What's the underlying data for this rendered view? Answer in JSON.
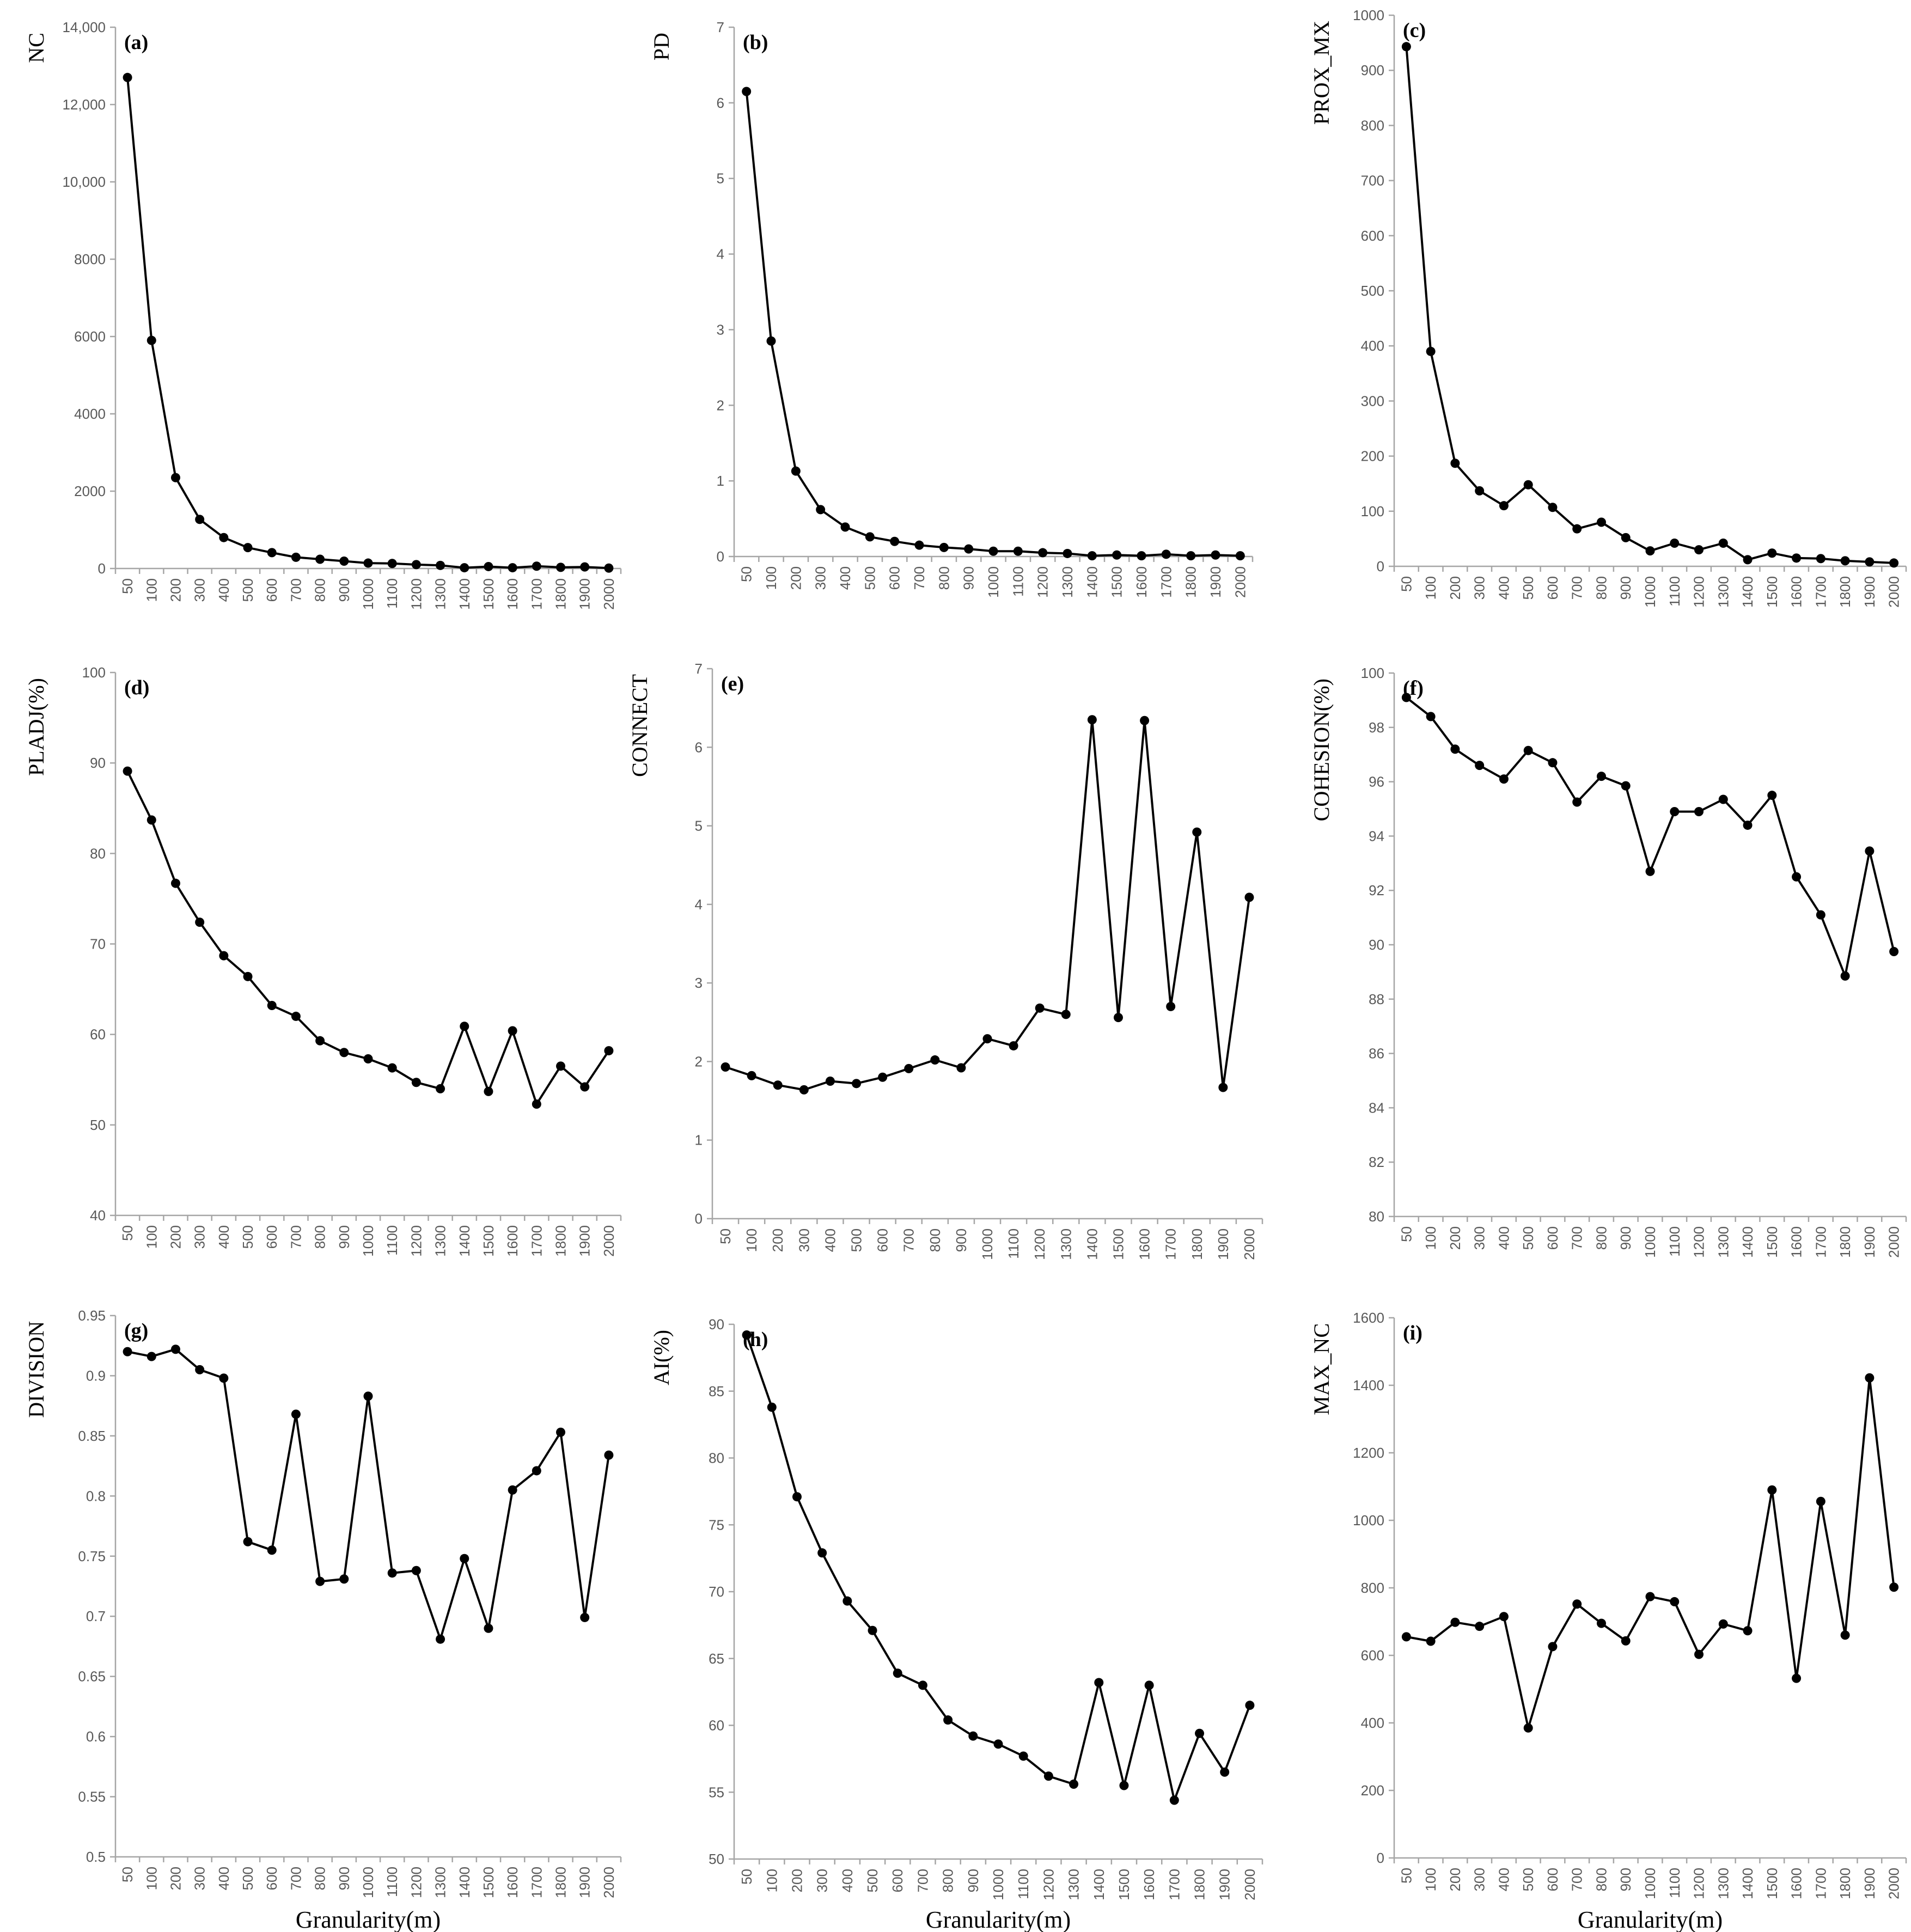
{
  "x_axis_title": "Granularity(m)",
  "chart_data": [
    {
      "type": "line",
      "panel_label": "(a)",
      "ylabel": "NC",
      "xlabel": "",
      "ylim": [
        0,
        14000
      ],
      "yticks": [
        "0",
        "2000",
        "4000",
        "6000",
        "8000",
        "10,000",
        "12,000",
        "14,000"
      ],
      "categories": [
        "50",
        "100",
        "200",
        "300",
        "400",
        "500",
        "600",
        "700",
        "800",
        "900",
        "1000",
        "1100",
        "1200",
        "1300",
        "1400",
        "1500",
        "1600",
        "1700",
        "1800",
        "1900",
        "2000"
      ],
      "values": [
        12700,
        5900,
        2350,
        1270,
        800,
        540,
        410,
        290,
        240,
        190,
        140,
        130,
        100,
        80,
        20,
        50,
        20,
        60,
        30,
        40,
        10
      ]
    },
    {
      "type": "line",
      "panel_label": "(b)",
      "ylabel": "PD",
      "xlabel": "",
      "ylim": [
        0,
        7
      ],
      "yticks": [
        "0",
        "1",
        "2",
        "3",
        "4",
        "5",
        "6",
        "7"
      ],
      "categories": [
        "50",
        "100",
        "200",
        "300",
        "400",
        "500",
        "600",
        "700",
        "800",
        "900",
        "1000",
        "1100",
        "1200",
        "1300",
        "1400",
        "1500",
        "1600",
        "1700",
        "1800",
        "1900",
        "2000"
      ],
      "values": [
        6.15,
        2.85,
        1.13,
        0.62,
        0.39,
        0.26,
        0.2,
        0.15,
        0.12,
        0.1,
        0.07,
        0.07,
        0.05,
        0.04,
        0.01,
        0.02,
        0.01,
        0.03,
        0.01,
        0.02,
        0.01
      ]
    },
    {
      "type": "line",
      "panel_label": "(c)",
      "ylabel": "PROX_MX",
      "xlabel": "",
      "ylim": [
        0,
        1000
      ],
      "yticks": [
        "0",
        "100",
        "200",
        "300",
        "400",
        "500",
        "600",
        "700",
        "800",
        "900",
        "1000"
      ],
      "categories": [
        "50",
        "100",
        "200",
        "300",
        "400",
        "500",
        "600",
        "700",
        "800",
        "900",
        "1000",
        "1100",
        "1200",
        "1300",
        "1400",
        "1500",
        "1600",
        "1700",
        "1800",
        "1900",
        "2000"
      ],
      "values": [
        943,
        390,
        187,
        137,
        110,
        148,
        107,
        68,
        80,
        52,
        28,
        42,
        30,
        42,
        12,
        24,
        15,
        14,
        10,
        8,
        6
      ]
    },
    {
      "type": "line",
      "panel_label": "(d)",
      "ylabel": "PLADJ(%)",
      "xlabel": "",
      "ylim": [
        40,
        100
      ],
      "yticks": [
        "40",
        "50",
        "60",
        "70",
        "80",
        "90",
        "100"
      ],
      "categories": [
        "50",
        "100",
        "200",
        "300",
        "400",
        "500",
        "600",
        "700",
        "800",
        "900",
        "1000",
        "1100",
        "1200",
        "1300",
        "1400",
        "1500",
        "1600",
        "1700",
        "1800",
        "1900",
        "2000"
      ],
      "values": [
        89.1,
        83.7,
        76.7,
        72.4,
        68.7,
        66.4,
        63.2,
        62.0,
        59.3,
        58.0,
        57.3,
        56.3,
        54.7,
        54.0,
        60.9,
        53.7,
        60.4,
        52.3,
        56.5,
        54.2,
        58.2
      ]
    },
    {
      "type": "line",
      "panel_label": "(e)",
      "ylabel": "CONNECT",
      "xlabel": "",
      "ylim": [
        0,
        7
      ],
      "yticks": [
        "0",
        "1",
        "2",
        "3",
        "4",
        "5",
        "6",
        "7"
      ],
      "categories": [
        "50",
        "100",
        "200",
        "300",
        "400",
        "500",
        "600",
        "700",
        "800",
        "900",
        "1000",
        "1100",
        "1200",
        "1300",
        "1400",
        "1500",
        "1600",
        "1700",
        "1800",
        "1900",
        "2000"
      ],
      "values": [
        1.93,
        1.82,
        1.7,
        1.64,
        1.75,
        1.72,
        1.8,
        1.91,
        2.02,
        1.92,
        2.29,
        2.2,
        2.68,
        2.6,
        6.35,
        2.56,
        6.34,
        2.7,
        4.92,
        1.67,
        4.09
      ]
    },
    {
      "type": "line",
      "panel_label": "(f)",
      "ylabel": "COHESION(%)",
      "xlabel": "",
      "ylim": [
        80,
        100
      ],
      "yticks": [
        "80",
        "82",
        "84",
        "86",
        "88",
        "90",
        "92",
        "94",
        "96",
        "98",
        "100"
      ],
      "categories": [
        "50",
        "100",
        "200",
        "300",
        "400",
        "500",
        "600",
        "700",
        "800",
        "900",
        "1000",
        "1100",
        "1200",
        "1300",
        "1400",
        "1500",
        "1600",
        "1700",
        "1800",
        "1900",
        "2000"
      ],
      "values": [
        99.1,
        98.4,
        97.2,
        96.6,
        96.1,
        97.15,
        96.7,
        95.25,
        96.2,
        95.85,
        92.7,
        94.9,
        94.9,
        95.35,
        94.4,
        95.5,
        92.5,
        91.1,
        88.85,
        93.45,
        89.75
      ]
    },
    {
      "type": "line",
      "panel_label": "(g)",
      "ylabel": "DIVISION",
      "xlabel": "Granularity(m)",
      "ylim": [
        0.5,
        0.95
      ],
      "yticks": [
        "0.5",
        "0.55",
        "0.6",
        "0.65",
        "0.7",
        "0.75",
        "0.8",
        "0.85",
        "0.9",
        "0.95"
      ],
      "categories": [
        "50",
        "100",
        "200",
        "300",
        "400",
        "500",
        "600",
        "700",
        "800",
        "900",
        "1000",
        "1100",
        "1200",
        "1300",
        "1400",
        "1500",
        "1600",
        "1700",
        "1800",
        "1900",
        "2000"
      ],
      "values": [
        0.92,
        0.916,
        0.922,
        0.905,
        0.898,
        0.762,
        0.755,
        0.868,
        0.729,
        0.731,
        0.883,
        0.736,
        0.738,
        0.681,
        0.748,
        0.69,
        0.805,
        0.821,
        0.853,
        0.699,
        0.834
      ]
    },
    {
      "type": "line",
      "panel_label": "(h)",
      "ylabel": "AI(%)",
      "xlabel": "Granularity(m)",
      "ylim": [
        50,
        90
      ],
      "yticks": [
        "50",
        "55",
        "60",
        "65",
        "70",
        "75",
        "80",
        "85",
        "90"
      ],
      "categories": [
        "50",
        "100",
        "200",
        "300",
        "400",
        "500",
        "600",
        "700",
        "800",
        "900",
        "1000",
        "1100",
        "1200",
        "1300",
        "1400",
        "1500",
        "1600",
        "1700",
        "1800",
        "1900",
        "2000"
      ],
      "values": [
        89.2,
        83.8,
        77.1,
        72.9,
        69.3,
        67.1,
        63.9,
        63.0,
        60.4,
        59.2,
        58.6,
        57.7,
        56.2,
        55.6,
        63.2,
        55.5,
        63.0,
        54.4,
        59.4,
        56.5,
        61.5
      ]
    },
    {
      "type": "line",
      "panel_label": "(i)",
      "ylabel": "MAX_NC",
      "xlabel": "Granularity(m)",
      "ylim": [
        0,
        1600
      ],
      "yticks": [
        "0",
        "200",
        "400",
        "600",
        "800",
        "1000",
        "1200",
        "1400",
        "1600"
      ],
      "categories": [
        "50",
        "100",
        "200",
        "300",
        "400",
        "500",
        "600",
        "700",
        "800",
        "900",
        "1000",
        "1100",
        "1200",
        "1300",
        "1400",
        "1500",
        "1600",
        "1700",
        "1800",
        "1900",
        "2000"
      ],
      "values": [
        655,
        642,
        698,
        686,
        715,
        385,
        626,
        752,
        695,
        643,
        774,
        759,
        603,
        693,
        673,
        1090,
        532,
        1056,
        660,
        1422,
        802
      ]
    }
  ]
}
